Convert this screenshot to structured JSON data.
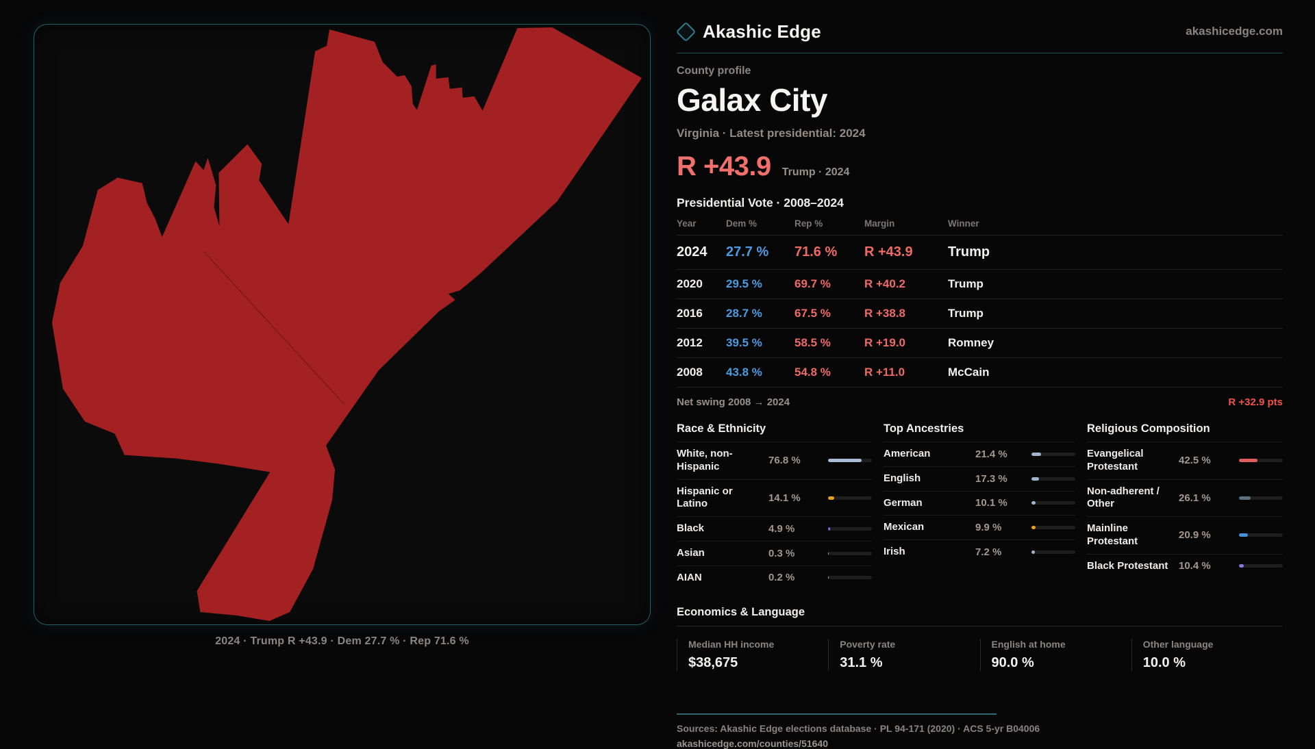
{
  "brand": {
    "name": "Akashic Edge",
    "domain": "akashicedge.com"
  },
  "profile": {
    "kicker": "County profile",
    "title": "Galax City",
    "subtitle": "Virginia · Latest presidential: 2024",
    "headline_margin": "R +43.9",
    "headline_context": "Trump · 2024"
  },
  "vote_table": {
    "title": "Presidential Vote · 2008–2024",
    "columns": [
      "Year",
      "Dem %",
      "Rep %",
      "Margin",
      "Winner"
    ],
    "rows": [
      {
        "year": "2024",
        "dem": "27.7 %",
        "rep": "71.6 %",
        "margin": "R +43.9",
        "winner": "Trump"
      },
      {
        "year": "2020",
        "dem": "29.5 %",
        "rep": "69.7 %",
        "margin": "R +40.2",
        "winner": "Trump"
      },
      {
        "year": "2016",
        "dem": "28.7 %",
        "rep": "67.5 %",
        "margin": "R +38.8",
        "winner": "Trump"
      },
      {
        "year": "2012",
        "dem": "39.5 %",
        "rep": "58.5 %",
        "margin": "R +19.0",
        "winner": "Romney"
      },
      {
        "year": "2008",
        "dem": "43.8 %",
        "rep": "54.8 %",
        "margin": "R +11.0",
        "winner": "McCain"
      }
    ],
    "net_swing_label": "Net swing 2008 → 2024",
    "net_swing_value": "R +32.9 pts"
  },
  "demographics": {
    "race": {
      "title": "Race & Ethnicity",
      "rows": [
        {
          "label": "White, non-Hispanic",
          "value": "76.8 %",
          "pct": 76.8,
          "color": "#a9bdd9"
        },
        {
          "label": "Hispanic or Latino",
          "value": "14.1 %",
          "pct": 14.1,
          "color": "#e8a21c"
        },
        {
          "label": "Black",
          "value": "4.9 %",
          "pct": 4.9,
          "color": "#7b68e0"
        },
        {
          "label": "Asian",
          "value": "0.3 %",
          "pct": 0.3,
          "color": "#9fb6cc"
        },
        {
          "label": "AIAN",
          "value": "0.2 %",
          "pct": 0.2,
          "color": "#9fb6cc"
        }
      ]
    },
    "ancestries": {
      "title": "Top Ancestries",
      "rows": [
        {
          "label": "American",
          "value": "21.4 %",
          "pct": 21.4,
          "color": "#9fb6cc"
        },
        {
          "label": "English",
          "value": "17.3 %",
          "pct": 17.3,
          "color": "#9fb6cc"
        },
        {
          "label": "German",
          "value": "10.1 %",
          "pct": 10.1,
          "color": "#9fb6cc"
        },
        {
          "label": "Mexican",
          "value": "9.9 %",
          "pct": 9.9,
          "color": "#e8a21c"
        },
        {
          "label": "Irish",
          "value": "7.2 %",
          "pct": 7.2,
          "color": "#9fb6cc"
        }
      ]
    },
    "religion": {
      "title": "Religious Composition",
      "rows": [
        {
          "label": "Evangelical Protestant",
          "value": "42.5 %",
          "pct": 42.5,
          "color": "#e05f5c"
        },
        {
          "label": "Non-adherent / Other",
          "value": "26.1 %",
          "pct": 26.1,
          "color": "#5d6e7e"
        },
        {
          "label": "Mainline Protestant",
          "value": "20.9 %",
          "pct": 20.9,
          "color": "#4a90d8"
        },
        {
          "label": "Black Protestant",
          "value": "10.4 %",
          "pct": 10.4,
          "color": "#8577e0"
        }
      ]
    }
  },
  "economics": {
    "title": "Economics & Language",
    "stats": [
      {
        "label": "Median HH income",
        "value": "$38,675"
      },
      {
        "label": "Poverty rate",
        "value": "31.1 %"
      },
      {
        "label": "English at home",
        "value": "90.0 %"
      },
      {
        "label": "Other language",
        "value": "10.0 %"
      }
    ]
  },
  "map": {
    "caption": "2024 · Trump R +43.9 · Dem 27.7 % · Rep 71.6 %",
    "fill": "#a32123"
  },
  "footer": {
    "sources": "Sources: Akashic Edge elections database · PL 94-171 (2020) · ACS 5-yr B04006",
    "permalink": "akashicedge.com/counties/51640"
  },
  "colors": {
    "dem_blue": "#4d9be0",
    "rep_red": "#f06a66",
    "accent_teal": "#2f7e90",
    "map_fill": "#a32123"
  }
}
